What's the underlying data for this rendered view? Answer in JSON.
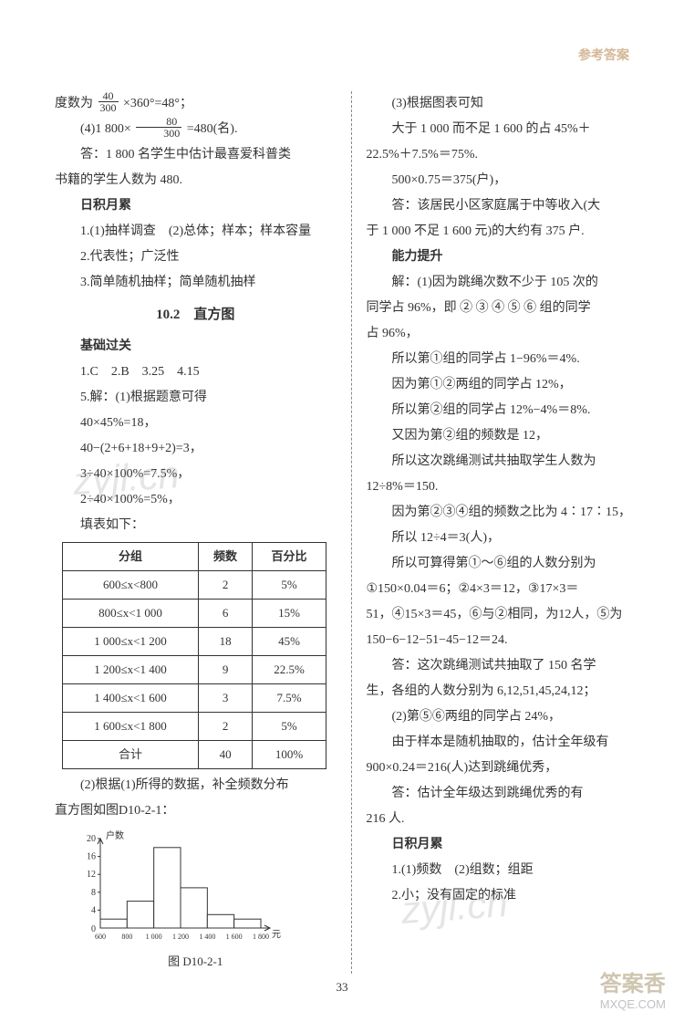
{
  "header": {
    "rightTitle": "参考答案"
  },
  "left": {
    "line1a": "度数为",
    "frac1": {
      "num": "40",
      "den": "300"
    },
    "line1b": "×360°=48°；",
    "line2a": "(4)1 800×",
    "frac2": {
      "num": "80",
      "den": "300"
    },
    "line2b": "=480(名).",
    "line3": "答：1 800 名学生中估计最喜爱科普类",
    "line4": "书籍的学生人数为 480.",
    "riji": "日积月累",
    "r1": "1.(1)抽样调查　(2)总体；样本；样本容量",
    "r2": "2.代表性；广泛性",
    "r3": "3.简单随机抽样；简单随机抽样",
    "sectionTitle": "10.2　直方图",
    "jichu": "基础过关",
    "j1": "1.C　2.B　3.25　4.15",
    "j2": "5.解：(1)根据题意可得",
    "j3": "40×45%=18，",
    "j4": "40−(2+6+18+9+2)=3，",
    "j5": "3÷40×100%=7.5%，",
    "j6": "2÷40×100%=5%，",
    "j7": "填表如下：",
    "table": {
      "headers": [
        "分组",
        "频数",
        "百分比"
      ],
      "rows": [
        [
          "600≤x<800",
          "2",
          "5%"
        ],
        [
          "800≤x<1 000",
          "6",
          "15%"
        ],
        [
          "1 000≤x<1 200",
          "18",
          "45%"
        ],
        [
          "1 200≤x<1 400",
          "9",
          "22.5%"
        ],
        [
          "1 400≤x<1 600",
          "3",
          "7.5%"
        ],
        [
          "1 600≤x<1 800",
          "2",
          "5%"
        ],
        [
          "合计",
          "40",
          "100%"
        ]
      ]
    },
    "after1": "(2)根据(1)所得的数据，补全频数分布",
    "after2": "直方图如图D10-2-1：",
    "histogram": {
      "ylabel": "户数",
      "xlabel": "元",
      "yticks": [
        4,
        8,
        12,
        16,
        20
      ],
      "xticks": [
        "600",
        "800",
        "1 000",
        "1 200",
        "1 400",
        "1 600",
        "1 800"
      ],
      "bars": [
        2,
        6,
        18,
        9,
        3,
        2
      ],
      "bar_color": "#ffffff",
      "bar_border": "#333333",
      "axis_color": "#333333",
      "ymax": 20
    },
    "figcap": "图 D10-2-1"
  },
  "right": {
    "p1": "(3)根据图表可知",
    "p2": "大于 1 000 而不足 1 600 的占 45%＋",
    "p3": "22.5%＋7.5%＝75%.",
    "p4": "500×0.75＝375(户)，",
    "p5": "答：该居民小区家庭属于中等收入(大",
    "p6": "于 1 000 不足 1 600 元)的大约有 375 户.",
    "nlts": "能力提升",
    "n1": "解：(1)因为跳绳次数不少于 105 次的",
    "n2": "同学占 96%，即 ② ③ ④ ⑤ ⑥ 组的同学",
    "n3": "占 96%，",
    "n4": "所以第①组的同学占 1−96%＝4%.",
    "n5": "因为第①②两组的同学占 12%，",
    "n6": "所以第②组的同学占 12%−4%＝8%.",
    "n7": "又因为第②组的频数是 12，",
    "n8": "所以这次跳绳测试共抽取学生人数为",
    "n9": "12÷8%＝150.",
    "n10": "因为第②③④组的频数之比为 4∶17∶15，",
    "n11": "所以 12÷4＝3(人)，",
    "n12": "所以可算得第①～⑥组的人数分别为",
    "n13": "①150×0.04＝6；②4×3＝12，③17×3＝",
    "n14": "51，④15×3＝45，⑥与②相同，为12人，⑤为",
    "n15": "150−6−12−51−45−12＝24.",
    "n16": "答：这次跳绳测试共抽取了 150 名学",
    "n17": "生，各组的人数分别为 6,12,51,45,24,12；",
    "n18": "(2)第⑤⑥两组的同学占 24%，",
    "n19": "由于样本是随机抽取的，估计全年级有",
    "n20": "900×0.24＝216(人)达到跳绳优秀，",
    "n21": "答：估计全年级达到跳绳优秀的有",
    "n22": "216 人.",
    "riji": "日积月累",
    "r1": "1.(1)频数　(2)组数；组距",
    "r2": "2.小；没有固定的标准"
  },
  "pageNumber": "33",
  "watermark": "zyjl.cn",
  "cornerBrand": "答案㕿",
  "cornerSite": "MXQE.COM"
}
